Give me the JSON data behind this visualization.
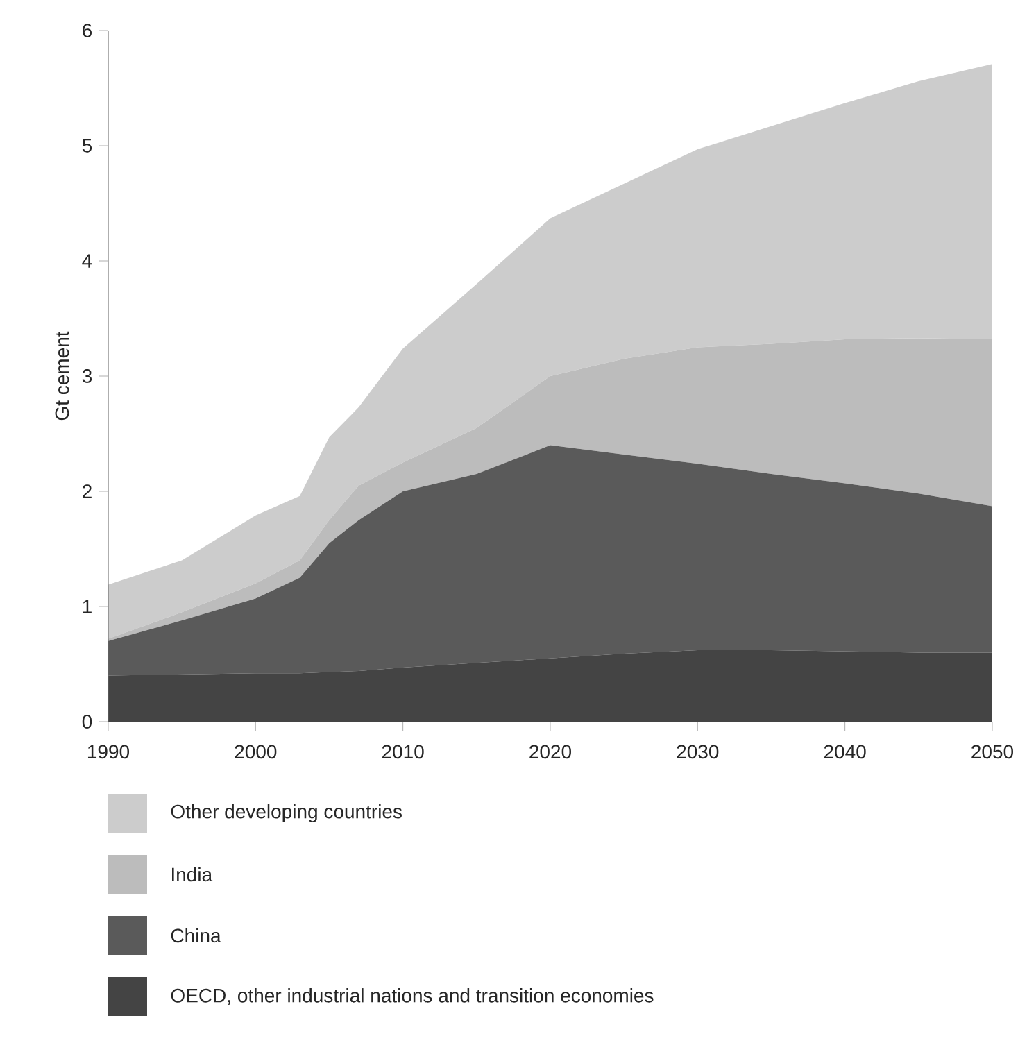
{
  "chart_data": {
    "type": "area",
    "stacked": true,
    "ylabel": "Gt cement",
    "legend": "bottom",
    "grid": false,
    "x": [
      1990,
      1995,
      2000,
      2003,
      2005,
      2007,
      2010,
      2015,
      2020,
      2025,
      2030,
      2035,
      2040,
      2045,
      2050
    ],
    "xlim": [
      1990,
      2050
    ],
    "xticks": [
      1990,
      2000,
      2010,
      2020,
      2030,
      2040,
      2050
    ],
    "ylim": [
      0,
      6
    ],
    "yticks": [
      0,
      1,
      2,
      3,
      4,
      5,
      6
    ],
    "series": [
      {
        "name": "OECD, other industrial nations and transition economies",
        "color": "#444444",
        "values": [
          0.4,
          0.41,
          0.42,
          0.42,
          0.43,
          0.44,
          0.47,
          0.51,
          0.55,
          0.59,
          0.62,
          0.62,
          0.61,
          0.6,
          0.6
        ]
      },
      {
        "name": "China",
        "color": "#5a5a5a",
        "values": [
          0.3,
          0.47,
          0.65,
          0.83,
          1.12,
          1.31,
          1.53,
          1.64,
          1.85,
          1.73,
          1.62,
          1.53,
          1.46,
          1.38,
          1.27
        ]
      },
      {
        "name": "India",
        "color": "#bcbcbc",
        "values": [
          0.02,
          0.07,
          0.13,
          0.15,
          0.2,
          0.3,
          0.25,
          0.4,
          0.6,
          0.83,
          1.01,
          1.13,
          1.25,
          1.35,
          1.45
        ]
      },
      {
        "name": "Other developing countries",
        "color": "#cccccc",
        "values": [
          0.47,
          0.45,
          0.59,
          0.56,
          0.72,
          0.68,
          0.99,
          1.25,
          1.37,
          1.52,
          1.72,
          1.89,
          2.05,
          2.23,
          2.39
        ]
      }
    ]
  }
}
